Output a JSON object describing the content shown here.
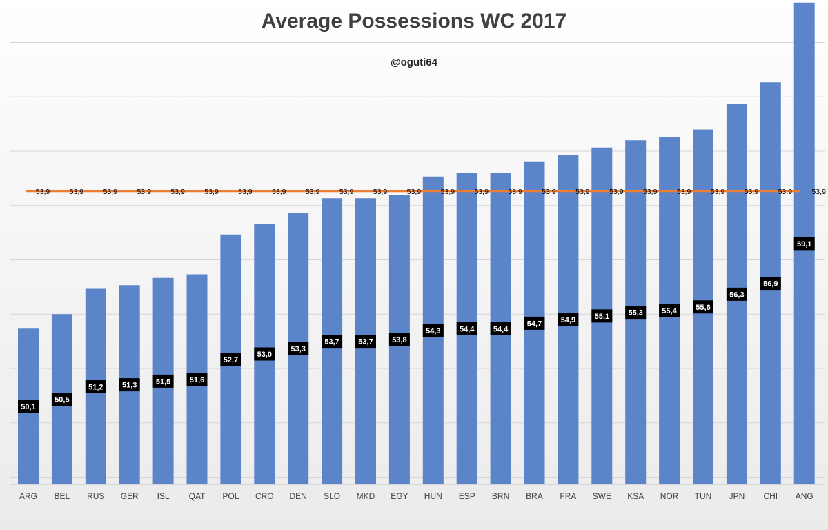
{
  "chart_data": {
    "type": "bar",
    "title": "Average Possessions WC 2017",
    "subtitle": "@oguti64",
    "categories": [
      "ARG",
      "BEL",
      "RUS",
      "GER",
      "ISL",
      "QAT",
      "POL",
      "CRO",
      "DEN",
      "SLO",
      "MKD",
      "EGY",
      "HUN",
      "ESP",
      "BRN",
      "BRA",
      "FRA",
      "SWE",
      "KSA",
      "NOR",
      "TUN",
      "JPN",
      "CHI",
      "ANG"
    ],
    "series": [
      {
        "type": "bar",
        "values": [
          50.1,
          50.5,
          51.2,
          51.3,
          51.5,
          51.6,
          52.7,
          53.0,
          53.3,
          53.7,
          53.7,
          53.8,
          54.3,
          54.4,
          54.4,
          54.7,
          54.9,
          55.1,
          55.3,
          55.4,
          55.6,
          56.3,
          56.9,
          59.1
        ],
        "labels": [
          "50,1",
          "50,5",
          "51,2",
          "51,3",
          "51,5",
          "51,6",
          "52,7",
          "53,0",
          "53,3",
          "53,7",
          "53,7",
          "53,8",
          "54,3",
          "54,4",
          "54,4",
          "54,7",
          "54,9",
          "55,1",
          "55,3",
          "55,4",
          "55,6",
          "56,3",
          "56,9",
          "59,1"
        ],
        "color": "#5b84c9"
      },
      {
        "type": "line",
        "value": 53.9,
        "label": "53,9",
        "color": "#ed7d31"
      }
    ],
    "ylim": [
      45.8,
      62.0
    ],
    "y_gridlines": [
      46.0,
      47.5,
      49.0,
      50.5,
      52.0,
      53.5,
      55.0,
      56.5,
      58.0,
      59.5,
      61.0
    ],
    "grid": true,
    "legend": "none",
    "xlabel": "",
    "ylabel": ""
  }
}
